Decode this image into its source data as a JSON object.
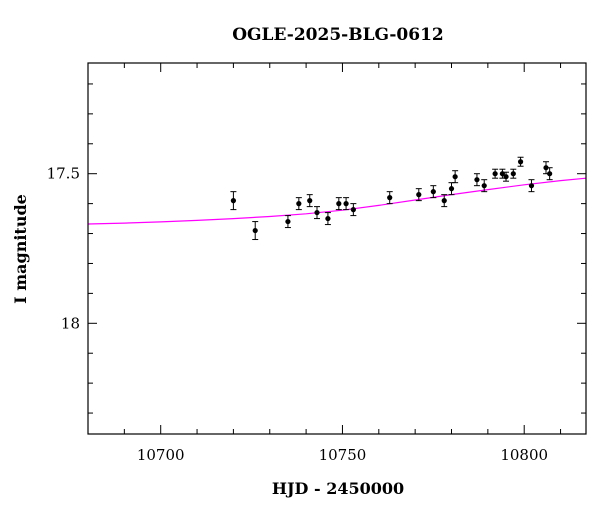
{
  "chart_data": {
    "type": "scatter",
    "title": "OGLE-2025-BLG-0612",
    "xlabel": "HJD - 2450000",
    "ylabel": "I magnitude",
    "xlim": [
      10680,
      10817
    ],
    "ylim": [
      18.37,
      17.13
    ],
    "y_inverted": true,
    "xticks": [
      10700,
      10750,
      10800
    ],
    "yticks": [
      17.5,
      18
    ],
    "colors": {
      "points": "#000000",
      "model": "#ff00ff"
    },
    "series": [
      {
        "type": "scatter_errorbar",
        "points": [
          {
            "x": 10720,
            "y": 17.59,
            "err": 0.03
          },
          {
            "x": 10726,
            "y": 17.69,
            "err": 0.03
          },
          {
            "x": 10735,
            "y": 17.66,
            "err": 0.02
          },
          {
            "x": 10738,
            "y": 17.6,
            "err": 0.02
          },
          {
            "x": 10741,
            "y": 17.59,
            "err": 0.02
          },
          {
            "x": 10743,
            "y": 17.63,
            "err": 0.02
          },
          {
            "x": 10746,
            "y": 17.65,
            "err": 0.02
          },
          {
            "x": 10749,
            "y": 17.6,
            "err": 0.02
          },
          {
            "x": 10751,
            "y": 17.6,
            "err": 0.02
          },
          {
            "x": 10753,
            "y": 17.62,
            "err": 0.02
          },
          {
            "x": 10763,
            "y": 17.58,
            "err": 0.02
          },
          {
            "x": 10771,
            "y": 17.57,
            "err": 0.02
          },
          {
            "x": 10775,
            "y": 17.56,
            "err": 0.02
          },
          {
            "x": 10778,
            "y": 17.59,
            "err": 0.02
          },
          {
            "x": 10780,
            "y": 17.55,
            "err": 0.02
          },
          {
            "x": 10781,
            "y": 17.51,
            "err": 0.02
          },
          {
            "x": 10787,
            "y": 17.52,
            "err": 0.02
          },
          {
            "x": 10789,
            "y": 17.54,
            "err": 0.02
          },
          {
            "x": 10792,
            "y": 17.5,
            "err": 0.015
          },
          {
            "x": 10794,
            "y": 17.5,
            "err": 0.015
          },
          {
            "x": 10795,
            "y": 17.51,
            "err": 0.015
          },
          {
            "x": 10797,
            "y": 17.5,
            "err": 0.015
          },
          {
            "x": 10799,
            "y": 17.46,
            "err": 0.015
          },
          {
            "x": 10802,
            "y": 17.54,
            "err": 0.02
          },
          {
            "x": 10806,
            "y": 17.48,
            "err": 0.02
          },
          {
            "x": 10807,
            "y": 17.5,
            "err": 0.02
          }
        ]
      },
      {
        "type": "line",
        "x": [
          10680,
          10690,
          10700,
          10710,
          10720,
          10730,
          10740,
          10750,
          10760,
          10770,
          10780,
          10790,
          10800,
          10810,
          10817
        ],
        "y": [
          17.668,
          17.665,
          17.661,
          17.656,
          17.65,
          17.643,
          17.634,
          17.622,
          17.606,
          17.588,
          17.57,
          17.553,
          17.537,
          17.523,
          17.515
        ]
      }
    ]
  }
}
